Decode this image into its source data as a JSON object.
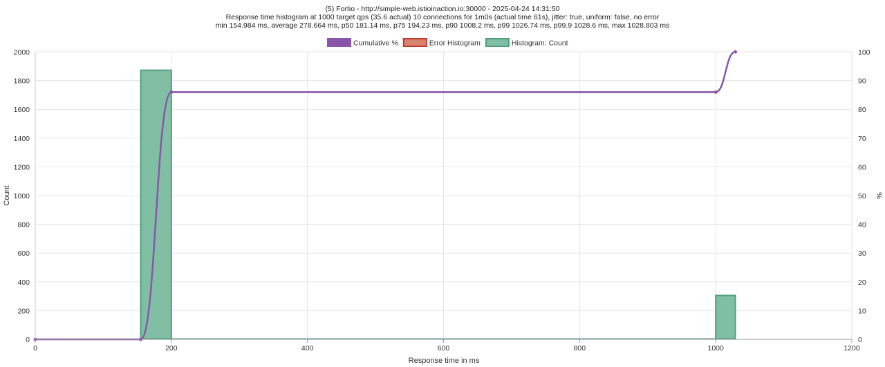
{
  "chart_data": {
    "type": "bar",
    "title_lines": [
      "(5) Fortio - http://simple-web.istioinaction.io:30000 - 2025-04-24 14:31:50",
      "Response time histogram at 1000 target qps (35.6 actual) 10 connections for 1m0s (actual time 61s), jitter: true, uniform: false, no error",
      "min 154.984 ms, average 278.664 ms, p50 181.14 ms, p75 194.23 ms, p90 1008.2 ms, p99 1026.74 ms, p99.9 1028.6 ms, max 1028.803 ms"
    ],
    "xlabel": "Response time in ms",
    "ylabel": "Count",
    "y2label": "%",
    "xlim": [
      0,
      1200
    ],
    "ylim": [
      0,
      2000
    ],
    "y2lim": [
      0,
      100
    ],
    "xticks": [
      0,
      200,
      400,
      600,
      800,
      1000,
      1200
    ],
    "yticks": [
      0,
      200,
      400,
      600,
      800,
      1000,
      1200,
      1400,
      1600,
      1800,
      2000
    ],
    "y2ticks": [
      0,
      10,
      20,
      30,
      40,
      50,
      60,
      70,
      80,
      90,
      100
    ],
    "grid": true,
    "legend": {
      "placement": "top-center",
      "items": [
        {
          "label": "Cumulative %",
          "color": "#8855aa",
          "fill": "#8855aa"
        },
        {
          "label": "Error Histogram",
          "color": "#c0392b",
          "fill": "#d9826f"
        },
        {
          "label": "Histogram: Count",
          "color": "#4f9f7c",
          "fill": "#80bfa3"
        }
      ]
    },
    "histogram": [
      {
        "start": 154.984,
        "end": 200,
        "count": 1872
      },
      {
        "start": 200,
        "end": 1000,
        "count": 0
      },
      {
        "start": 1000,
        "end": 1028.803,
        "count": 305
      }
    ],
    "cumulative": [
      {
        "x": 0,
        "y": 0
      },
      {
        "x": 154.984,
        "y": 0
      },
      {
        "x": 200,
        "y": 86
      },
      {
        "x": 1000,
        "y": 86
      },
      {
        "x": 1028.803,
        "y": 100
      }
    ]
  }
}
